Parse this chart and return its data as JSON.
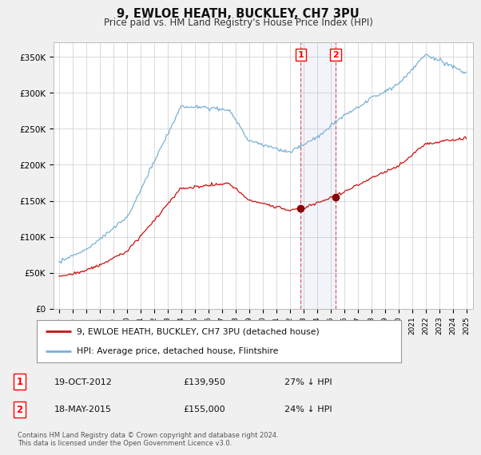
{
  "title": "9, EWLOE HEATH, BUCKLEY, CH7 3PU",
  "subtitle": "Price paid vs. HM Land Registry's House Price Index (HPI)",
  "legend_line1": "9, EWLOE HEATH, BUCKLEY, CH7 3PU (detached house)",
  "legend_line2": "HPI: Average price, detached house, Flintshire",
  "footer": "Contains HM Land Registry data © Crown copyright and database right 2024.\nThis data is licensed under the Open Government Licence v3.0.",
  "sale1_date": "19-OCT-2012",
  "sale1_price": "£139,950",
  "sale1_hpi": "27% ↓ HPI",
  "sale1_year": 2012.8,
  "sale2_date": "18-MAY-2015",
  "sale2_price": "£155,000",
  "sale2_hpi": "24% ↓ HPI",
  "sale2_year": 2015.38,
  "hpi_color": "#7ab0d4",
  "price_color": "#cc1111",
  "marker_color": "#880000",
  "ylim": [
    0,
    370000
  ],
  "yticks": [
    0,
    50000,
    100000,
    150000,
    200000,
    250000,
    300000,
    350000
  ],
  "ytick_labels": [
    "£0",
    "£50K",
    "£100K",
    "£150K",
    "£200K",
    "£250K",
    "£300K",
    "£350K"
  ],
  "background_color": "#f0f0f0",
  "plot_bg_color": "#ffffff"
}
